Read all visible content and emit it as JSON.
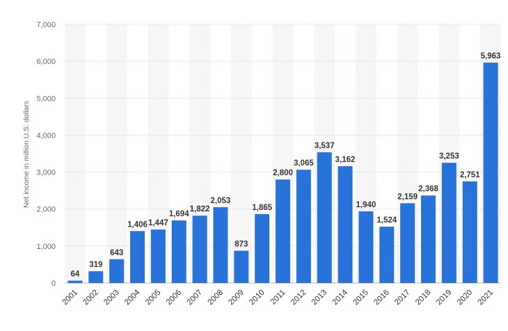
{
  "chart_data": {
    "type": "bar",
    "title": "",
    "xlabel": "",
    "ylabel": "Net income in million U.S. dollars",
    "ylim": [
      0,
      7000
    ],
    "yticks": [
      0,
      1000,
      2000,
      3000,
      4000,
      5000,
      6000,
      7000
    ],
    "ytick_labels": [
      "0",
      "1,000",
      "2,000",
      "3,000",
      "4,000",
      "5,000",
      "6,000",
      "7,000"
    ],
    "grid": true,
    "bar_color": "#2873da",
    "categories": [
      "2001",
      "2002",
      "2003",
      "2004",
      "2005",
      "2006",
      "2007",
      "2008",
      "2009",
      "2010",
      "2011",
      "2012",
      "2013",
      "2014",
      "2015",
      "2016",
      "2017",
      "2018",
      "2019",
      "2020",
      "2021"
    ],
    "values": [
      64,
      319,
      643,
      1406,
      1447,
      1694,
      1822,
      2053,
      873,
      1865,
      2800,
      3065,
      3537,
      3162,
      1940,
      1524,
      2159,
      2368,
      3253,
      2751,
      5963
    ],
    "value_labels": [
      "64",
      "319",
      "643",
      "1,406",
      "1,447",
      "1,694",
      "1,822",
      "2,053",
      "873",
      "1,865",
      "2,800",
      "3,065",
      "3,537",
      "3,162",
      "1,940",
      "1,524",
      "2,159",
      "2,368",
      "3,253",
      "2,751",
      "5,963"
    ]
  }
}
